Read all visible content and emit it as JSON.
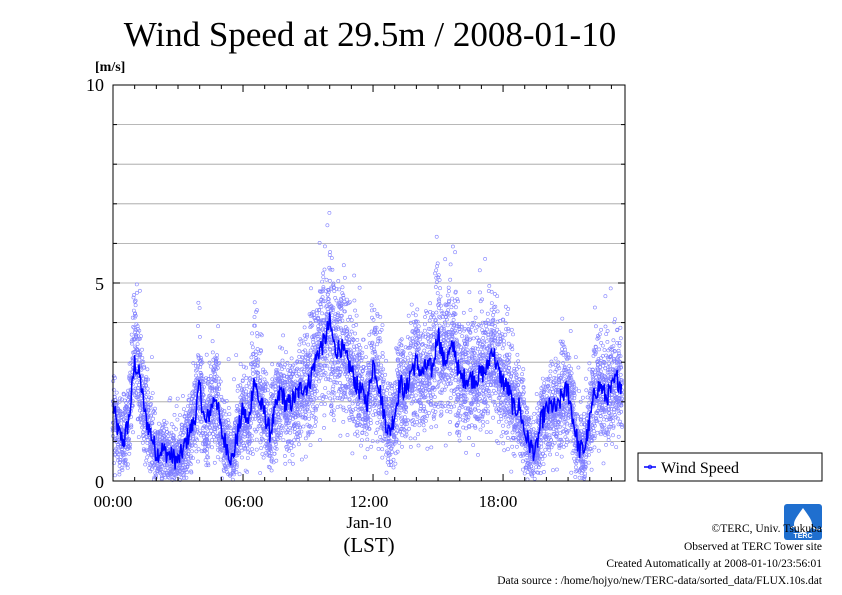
{
  "chart_data": {
    "type": "scatter",
    "title": "Wind Speed at 29.5m / 2008-01-10",
    "ylabel": "[m/s]",
    "ylim": [
      0,
      10
    ],
    "xlim_hours": [
      0,
      23.5
    ],
    "y_ticks": [
      "0",
      "5",
      "10"
    ],
    "x_ticks": [
      {
        "hour": 0,
        "label": "00:00"
      },
      {
        "hour": 6,
        "label": "06:00"
      },
      {
        "hour": 12,
        "label": "12:00"
      },
      {
        "hour": 18,
        "label": "18:00"
      }
    ],
    "date_label": "Jan-10",
    "time_zone_label": "(LST)",
    "grid": true,
    "legend_position": "bottom-right outside",
    "series": [
      {
        "name": "Wind Speed",
        "role": "smoothed mean line",
        "color": "#0000ff",
        "x_hours": [
          0,
          0.25,
          0.5,
          0.75,
          1,
          1.25,
          1.5,
          1.75,
          2,
          2.25,
          2.5,
          2.75,
          3,
          3.25,
          3.5,
          3.75,
          4,
          4.25,
          4.5,
          4.75,
          5,
          5.25,
          5.5,
          5.75,
          6,
          6.25,
          6.5,
          6.75,
          7,
          7.25,
          7.5,
          7.75,
          8,
          8.25,
          8.5,
          8.75,
          9,
          9.25,
          9.5,
          9.75,
          10,
          10.25,
          10.5,
          10.75,
          11,
          11.25,
          11.5,
          11.75,
          12,
          12.25,
          12.5,
          12.75,
          13,
          13.25,
          13.5,
          13.75,
          14,
          14.25,
          14.5,
          14.75,
          15,
          15.25,
          15.5,
          15.75,
          16,
          16.25,
          16.5,
          16.75,
          17,
          17.25,
          17.5,
          17.75,
          18,
          18.25,
          18.5,
          18.75,
          19,
          19.25,
          19.5,
          19.75,
          20,
          20.25,
          20.5,
          20.75,
          21,
          21.25,
          21.5,
          21.75,
          22,
          22.25,
          22.5,
          22.75,
          23,
          23.25,
          23.5
        ],
        "values": [
          1.9,
          1.2,
          1.0,
          1.6,
          3.0,
          2.6,
          1.6,
          1.2,
          0.7,
          0.8,
          0.7,
          0.6,
          0.5,
          0.8,
          1.2,
          1.5,
          2.4,
          1.4,
          1.8,
          2.2,
          1.2,
          0.9,
          0.5,
          1.2,
          1.8,
          1.4,
          2.6,
          2.0,
          1.7,
          1.2,
          1.8,
          2.3,
          1.9,
          2.0,
          2.2,
          2.4,
          2.4,
          2.9,
          3.3,
          3.5,
          4.0,
          3.3,
          3.4,
          3.1,
          2.8,
          2.4,
          2.2,
          2.0,
          3.0,
          2.5,
          1.7,
          1.2,
          1.7,
          2.5,
          2.2,
          2.8,
          3.0,
          2.7,
          2.9,
          2.8,
          3.8,
          3.0,
          3.2,
          3.4,
          2.6,
          2.6,
          2.6,
          2.6,
          2.7,
          2.8,
          3.4,
          2.8,
          2.5,
          2.3,
          1.8,
          1.9,
          1.2,
          0.9,
          0.7,
          1.5,
          1.8,
          1.9,
          1.8,
          2.2,
          2.3,
          1.5,
          0.8,
          0.8,
          1.5,
          2.3,
          2.4,
          2.1,
          2.3,
          2.6,
          2.4
        ]
      },
      {
        "name": "",
        "role": "10-second observations (scatter)",
        "color": "#8080ff",
        "spread_note": ""
      }
    ]
  },
  "legend": {
    "label": "Wind Speed"
  },
  "footer": {
    "copyright": "©TERC, Univ. Tsukuba",
    "observed": "Observed at TERC Tower site",
    "created": "Created Automatically at 2008-01-10/23:56:01",
    "source": "Data source : /home/hojyo/new/TERC-data/sorted_data/FLUX.10s.dat"
  },
  "logo": {
    "text": "TERC",
    "color": "#1f6fcf"
  }
}
